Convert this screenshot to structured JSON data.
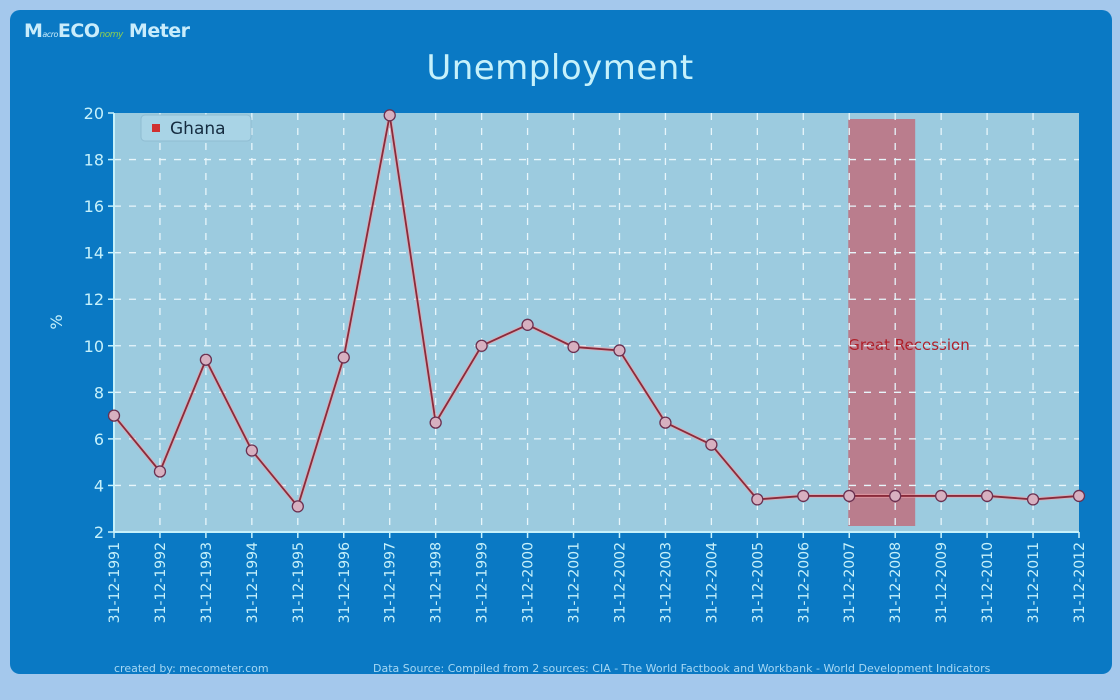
{
  "branding": {
    "logo_m": "M",
    "logo_acro": "acro",
    "logo_eco": "ECO",
    "logo_nomy": "nomy",
    "logo_meter": "Meter"
  },
  "chart_data": {
    "type": "line",
    "title": "Unemployment",
    "xlabel": "",
    "ylabel": "%",
    "ylim": [
      2,
      20
    ],
    "yticks": [
      2,
      4,
      6,
      8,
      10,
      12,
      14,
      16,
      18,
      20
    ],
    "grid": true,
    "legend_position": "top-left",
    "categories": [
      "31-12-1991",
      "31-12-1992",
      "31-12-1993",
      "31-12-1994",
      "31-12-1995",
      "31-12-1996",
      "31-12-1997",
      "31-12-1998",
      "31-12-1999",
      "31-12-2000",
      "31-12-2001",
      "31-12-2002",
      "31-12-2003",
      "31-12-2004",
      "31-12-2005",
      "31-12-2006",
      "31-12-2007",
      "31-12-2008",
      "31-12-2009",
      "31-12-2010",
      "31-12-2011",
      "31-12-2012"
    ],
    "series": [
      {
        "name": "Ghana",
        "color": "#d03030",
        "values": [
          7.0,
          4.6,
          9.4,
          5.5,
          3.1,
          9.5,
          19.9,
          6.7,
          10.0,
          10.9,
          9.95,
          9.8,
          6.7,
          5.75,
          3.4,
          3.55,
          3.55,
          3.55,
          3.55,
          3.55,
          3.4,
          3.55
        ]
      }
    ],
    "annotations": [
      {
        "type": "band",
        "label": "Great Recession",
        "from": "31-12-2007",
        "to": "31-12-2008",
        "color": "#c0707f"
      }
    ]
  },
  "footer": {
    "created_by": "created by: mecometer.com",
    "data_source": "Data Source: Compiled from 2 sources: CIA - The World Factbook and Workbank - World Development Indicators"
  },
  "colors": {
    "panel": "#0a79c4",
    "plot_bg": "#9ccbdf",
    "axis_text": "#c6f1fb",
    "line": "#d03030"
  }
}
